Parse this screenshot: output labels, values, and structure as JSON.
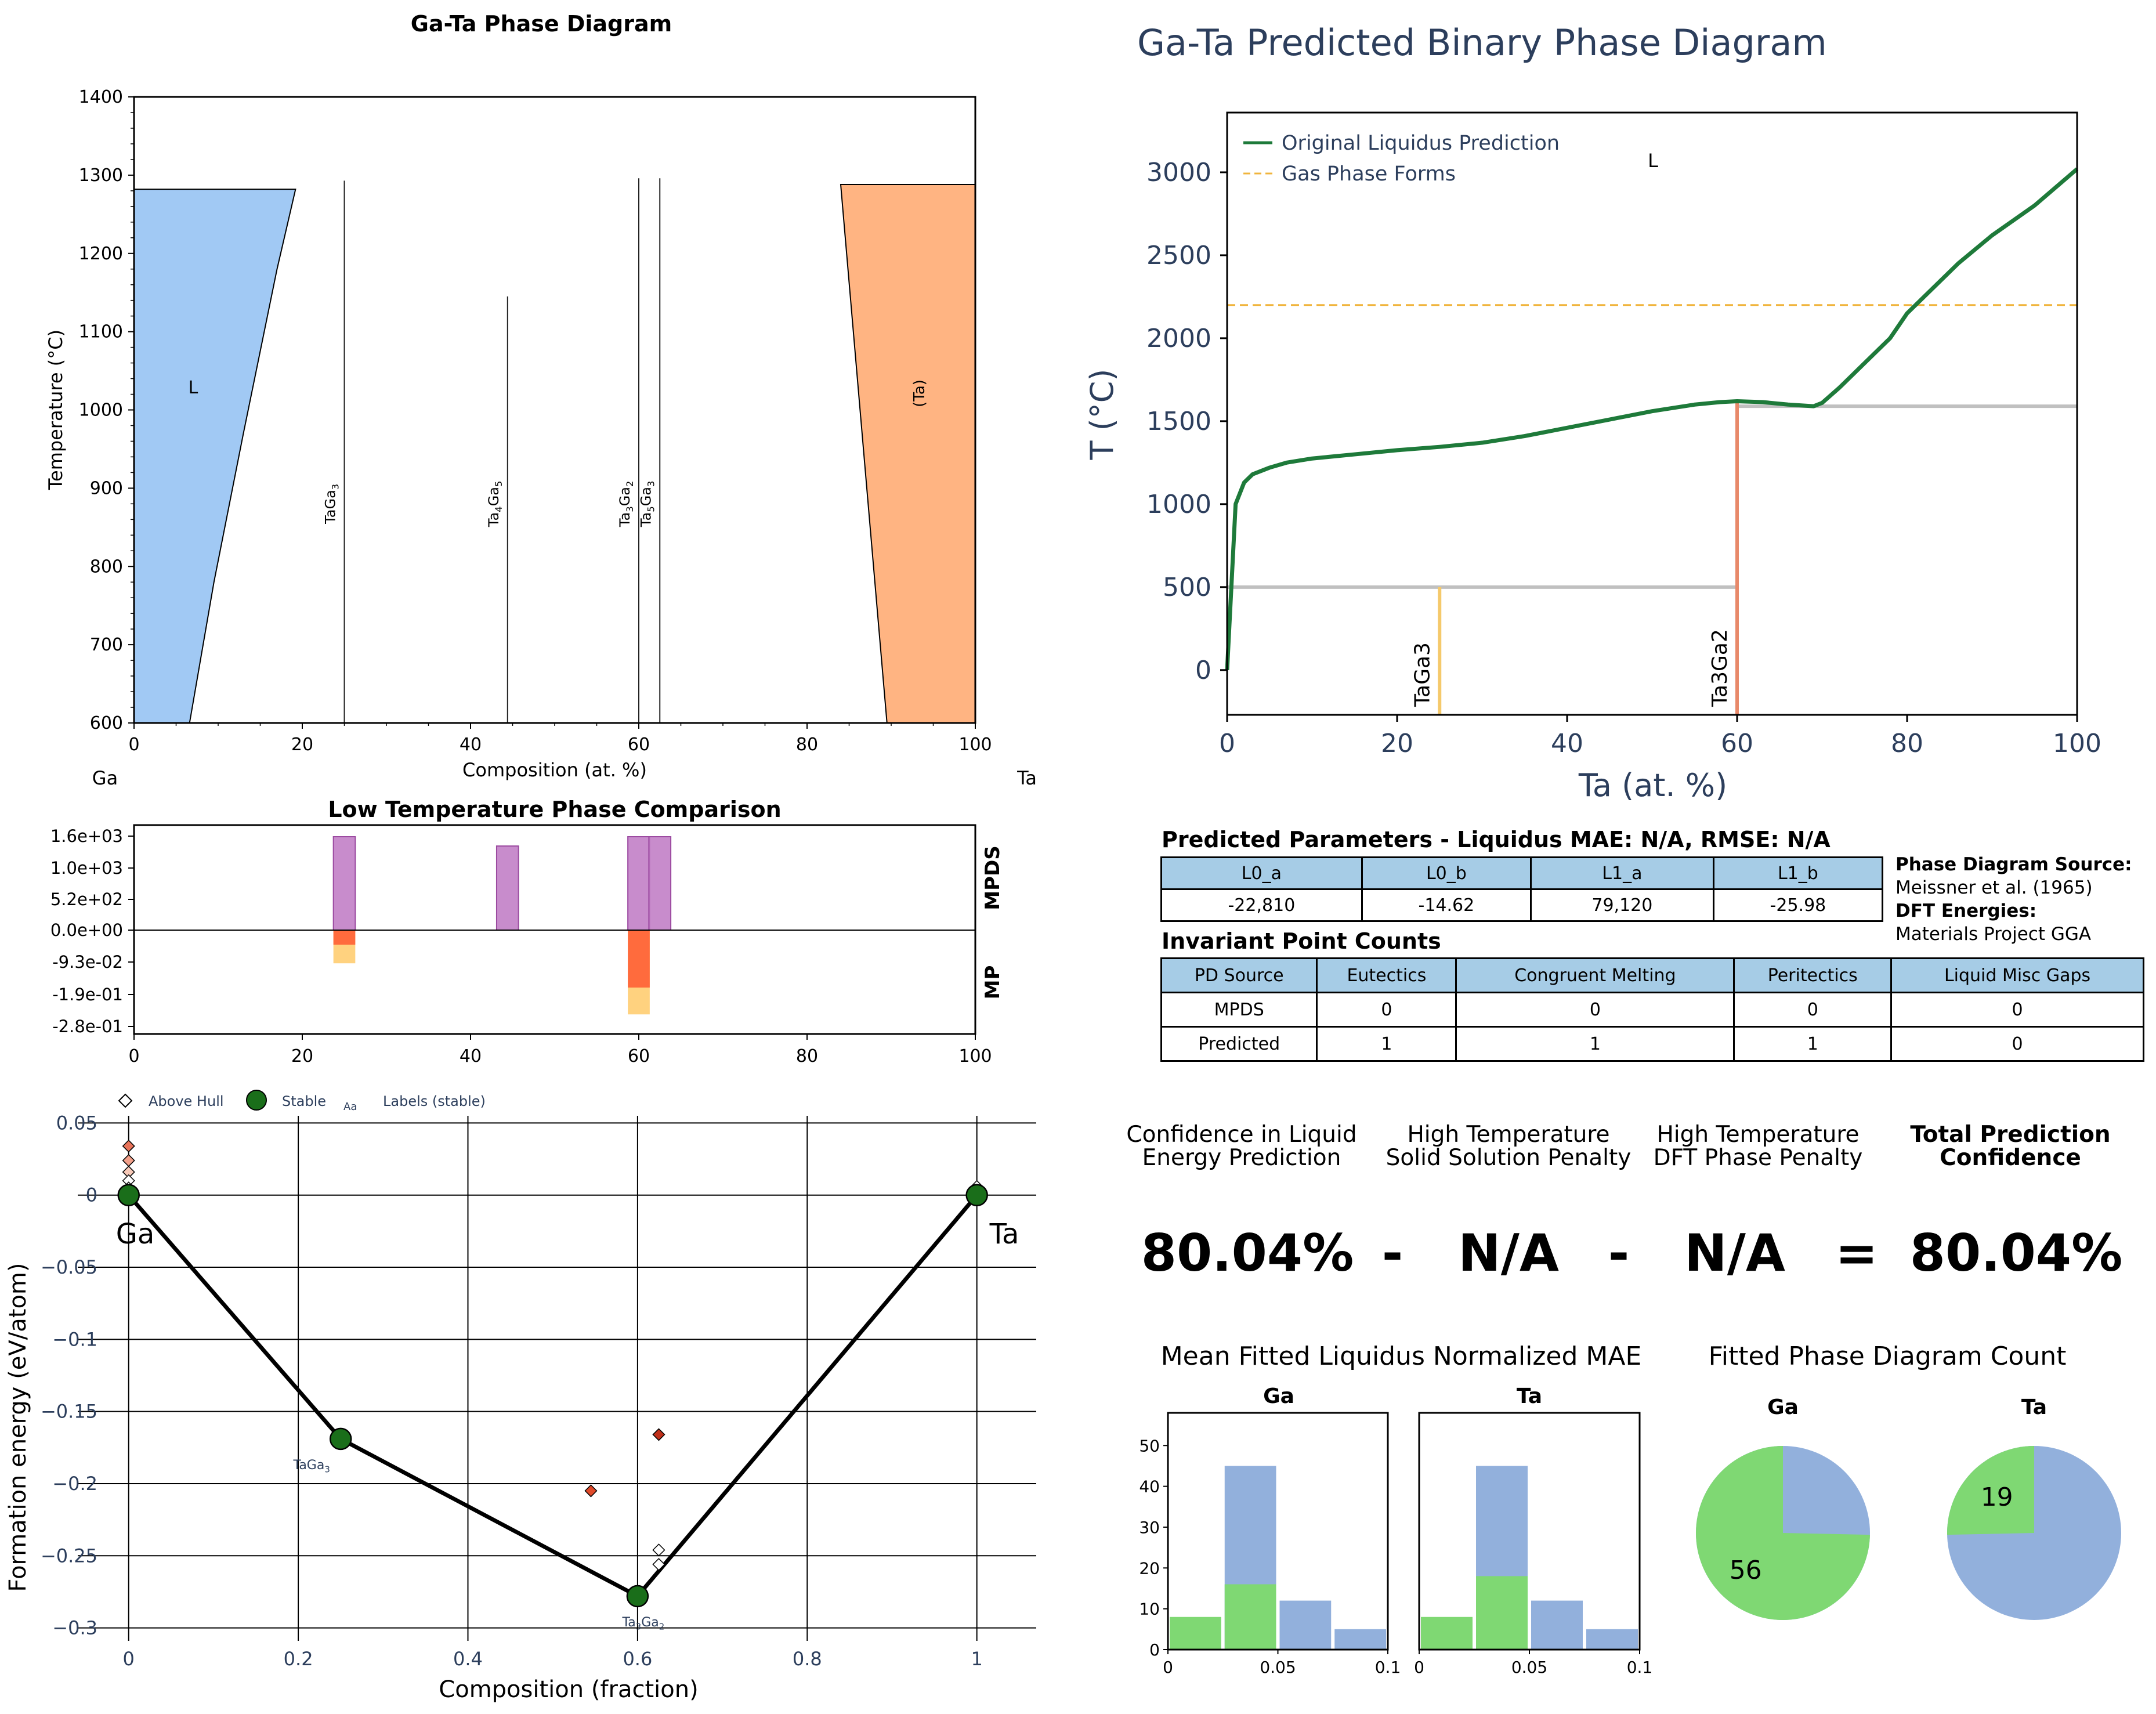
{
  "figures": {
    "pd_left": {
      "title": "Ga-Ta Phase Diagram",
      "xlabel": "Composition (at. %)",
      "ylabel": "Temperature (°C)",
      "left_element": "Ga",
      "right_element": "Ta",
      "region_labels": [
        "L",
        "(Ta)"
      ]
    },
    "compare": {
      "title": "Low Temperature Phase Comparison",
      "top_label": "MPDS",
      "bottom_label": "MP"
    },
    "hull": {
      "xlabel": "Composition (fraction)",
      "ylabel": "Formation energy (eV/atom)",
      "legend": [
        "Above Hull",
        "Stable",
        "Aa",
        "Labels (stable)"
      ],
      "end_labels": [
        "Ga",
        "Ta"
      ]
    },
    "pd_right": {
      "title": "Ga-Ta Predicted Binary Phase Diagram",
      "xlabel": "Ta (at. %)",
      "ylabel": "T (°C)",
      "legend": [
        "Original Liquidus Prediction",
        "Gas Phase Forms"
      ],
      "region_label": "L"
    }
  },
  "params": {
    "title": "Predicted Parameters - Liquidus MAE: N/A, RMSE: N/A",
    "headers": [
      "L0_a",
      "L0_b",
      "L1_a",
      "L1_b"
    ],
    "values": [
      "-22,810",
      "-14.62",
      "79,120",
      "-25.98"
    ]
  },
  "source": {
    "pd_label": "Phase Diagram Source:",
    "pd_value": "Meissner et al. (1965)",
    "dft_label": "DFT Energies:",
    "dft_value": "Materials Project GGA"
  },
  "invariants": {
    "title": "Invariant Point Counts",
    "headers": [
      "PD Source",
      "Eutectics",
      "Congruent Melting",
      "Peritectics",
      "Liquid Misc Gaps"
    ],
    "rows": [
      [
        "MPDS",
        "0",
        "0",
        "0",
        "0"
      ],
      [
        "Predicted",
        "1",
        "1",
        "1",
        "0"
      ]
    ]
  },
  "confidence": {
    "h1a": "Confidence in Liquid",
    "h1b": "Energy Prediction",
    "h2a": "High Temperature",
    "h2b": "Solid Solution Penalty",
    "h3a": "High Temperature",
    "h3b": "DFT Phase Penalty",
    "h4a": "Total Prediction",
    "h4b": "Confidence",
    "v1": "80.04%",
    "op1": "-",
    "v2": "N/A",
    "op2": "-",
    "v3": "N/A",
    "op3": "=",
    "v4": "80.04%"
  },
  "mae": {
    "title": "Mean Fitted Liquidus Normalized MAE",
    "sub": [
      "Ga",
      "Ta"
    ]
  },
  "count": {
    "title": "Fitted Phase Diagram Count",
    "sub": [
      "Ga",
      "Ta"
    ]
  },
  "colors": {
    "liquid_fill": "#a1c9f4",
    "ta_fill": "#ffb482",
    "purple": "#c27fc7",
    "red": "#ff6b3d",
    "orange": "#ffd27f",
    "green_line": "#1e7a3a",
    "gas_line": "#f0b43c",
    "blue_bar": "#92b0dc",
    "green_bar": "#7fd873",
    "stable_dot": "#1a6e1a",
    "text_navy": "#2c3e5c"
  },
  "chart_data": [
    {
      "type": "area",
      "name": "pd_left",
      "xlim": [
        0,
        100
      ],
      "ylim": [
        600,
        1400
      ],
      "xticks": [
        0,
        20,
        40,
        60,
        80,
        100
      ],
      "yticks": [
        600,
        700,
        800,
        900,
        1000,
        1100,
        1200,
        1300,
        1400
      ],
      "liquid_region": [
        [
          0,
          600
        ],
        [
          0,
          1282
        ],
        [
          19.2,
          1282
        ],
        [
          17,
          1180
        ],
        [
          13,
          970
        ],
        [
          9.5,
          780
        ],
        [
          6.6,
          600
        ]
      ],
      "ta_region": [
        [
          84,
          1288
        ],
        [
          100,
          1288
        ],
        [
          100,
          600
        ],
        [
          89.5,
          600
        ]
      ],
      "compounds": [
        {
          "label": "TaGa3",
          "main": "TaGa",
          "sub": "3",
          "x": 25,
          "ytop": 1293
        },
        {
          "label": "Ta4Ga5",
          "main": "Ta",
          "sub1": "4",
          "main2": "Ga",
          "sub": "5",
          "x": 44.4,
          "ytop": 1145
        },
        {
          "label": "Ta3Ga2",
          "main": "Ta",
          "sub1": "3",
          "main2": "Ga",
          "sub": "2",
          "x": 60,
          "ytop": 1296
        },
        {
          "label": "Ta5Ga3",
          "main": "Ta",
          "sub1": "5",
          "main2": "Ga",
          "sub": "3",
          "x": 62.5,
          "ytop": 1296
        }
      ],
      "grid": false
    },
    {
      "type": "bar",
      "name": "compare",
      "xlim": [
        0,
        100
      ],
      "xticks": [
        0,
        20,
        40,
        60,
        80,
        100
      ],
      "ytick_labels": [
        "1.6e+03",
        "1.0e+03",
        "5.2e+02",
        "0.0e+00",
        "-9.3e-02",
        "-1.9e-01",
        "-2.8e-01"
      ],
      "mpds_bars": [
        {
          "x0": 23.7,
          "x1": 26.3,
          "level": 1.0
        },
        {
          "x0": 43.1,
          "x1": 45.7,
          "level": 0.9
        },
        {
          "x0": 58.7,
          "x1": 61.3,
          "level": 1.0
        },
        {
          "x0": 61.2,
          "x1": 63.8,
          "level": 1.0
        }
      ],
      "mp_bars": [
        {
          "x0": 23.7,
          "x1": 26.3,
          "red": -0.0425,
          "orange": -0.0965
        },
        {
          "x0": 58.7,
          "x1": 61.3,
          "red": -0.167,
          "orange": -0.245
        }
      ],
      "grid": false
    },
    {
      "type": "scatter",
      "name": "hull",
      "xlim": [
        -0.06,
        1.07
      ],
      "ylim": [
        -0.305,
        0.055
      ],
      "xticks": [
        0,
        0.2,
        0.4,
        0.6,
        0.8,
        1
      ],
      "xtick_labels": [
        "0",
        "0.2",
        "0.4",
        "0.6",
        "0.8",
        "1"
      ],
      "yticks": [
        0.05,
        0,
        -0.05,
        -0.1,
        -0.15,
        -0.2,
        -0.25,
        -0.3
      ],
      "ytick_labels": [
        "0.05",
        "0",
        "−0.05",
        "−0.1",
        "−0.15",
        "−0.2",
        "−0.25",
        "−0.3"
      ],
      "hull_line": [
        [
          0,
          0
        ],
        [
          0.25,
          -0.169
        ],
        [
          0.6,
          -0.278
        ],
        [
          1,
          0
        ]
      ],
      "stable": [
        {
          "x": 0,
          "y": 0
        },
        {
          "x": 0.25,
          "y": -0.169,
          "label": "TaGa3",
          "main": "TaGa",
          "sub": "3"
        },
        {
          "x": 0.6,
          "y": -0.278,
          "label": "Ta3Ga2",
          "main": "Ta",
          "sub1": "3",
          "main2": "Ga",
          "sub": "2"
        },
        {
          "x": 1,
          "y": 0
        }
      ],
      "above_hull": [
        {
          "x": 0,
          "y": 0.034,
          "c": "#e8735a"
        },
        {
          "x": 0,
          "y": 0.024,
          "c": "#f2a08a"
        },
        {
          "x": 0,
          "y": 0.016,
          "c": "#f7c9b8"
        },
        {
          "x": 0,
          "y": 0.01,
          "c": "#ffffff"
        },
        {
          "x": 0,
          "y": 0.005,
          "c": "#ffffff"
        },
        {
          "x": 1,
          "y": 0.006,
          "c": "#ffffff"
        },
        {
          "x": 0.545,
          "y": -0.205,
          "c": "#e04a2a"
        },
        {
          "x": 0.625,
          "y": -0.166,
          "c": "#c0301a"
        },
        {
          "x": 0.625,
          "y": -0.246,
          "c": "#ffffff"
        },
        {
          "x": 0.625,
          "y": -0.256,
          "c": "#ffffff"
        }
      ],
      "grid": true
    },
    {
      "type": "line",
      "name": "pd_right",
      "xlim": [
        0,
        100
      ],
      "ylim": [
        -270,
        3360
      ],
      "xticks": [
        0,
        20,
        40,
        60,
        80,
        100
      ],
      "yticks": [
        0,
        500,
        1000,
        1500,
        2000,
        2500,
        3000
      ],
      "series": [
        {
          "name": "Original Liquidus Prediction",
          "x": [
            0,
            1,
            2,
            3,
            5,
            7,
            10,
            15,
            20,
            25,
            30,
            35,
            40,
            45,
            50,
            55,
            58,
            60,
            63,
            66,
            69,
            70,
            72,
            75,
            78,
            80,
            83,
            86,
            90,
            95,
            100
          ],
          "y": [
            0,
            1000,
            1130,
            1180,
            1220,
            1250,
            1275,
            1300,
            1325,
            1345,
            1370,
            1410,
            1460,
            1510,
            1560,
            1600,
            1615,
            1620,
            1615,
            1600,
            1590,
            1610,
            1700,
            1850,
            2000,
            2150,
            2300,
            2450,
            2620,
            2800,
            3020
          ]
        },
        {
          "name": "Gas Phase Forms",
          "x": [
            0,
            100
          ],
          "y": [
            2200,
            2200
          ]
        }
      ],
      "invariant_lines": [
        {
          "x0": 0,
          "x1": 60,
          "y": 500
        },
        {
          "x0": 60,
          "x1": 100,
          "y": 1590
        }
      ],
      "compounds": [
        {
          "label": "TaGa3",
          "x": 25,
          "ytop": 500
        },
        {
          "label": "Ta3Ga2",
          "x": 60,
          "ytop": 1620
        }
      ],
      "grid": false
    },
    {
      "type": "bar",
      "name": "mae_ga",
      "title": "Ga",
      "xlim": [
        0,
        0.1
      ],
      "ylim": [
        0,
        58
      ],
      "xticks": [
        0,
        0.05,
        0.1
      ],
      "xtick_labels": [
        "0",
        "0.05",
        "0.1"
      ],
      "yticks": [
        0,
        10,
        20,
        30,
        40,
        50
      ],
      "bins": [
        [
          0,
          0.025
        ],
        [
          0.025,
          0.05
        ],
        [
          0.05,
          0.075
        ],
        [
          0.075,
          0.1
        ]
      ],
      "series": [
        {
          "color": "blue",
          "values": [
            0,
            45,
            12,
            5
          ]
        },
        {
          "color": "green",
          "values": [
            8,
            16,
            0,
            0
          ]
        }
      ]
    },
    {
      "type": "bar",
      "name": "mae_ta",
      "title": "Ta",
      "xlim": [
        0,
        0.1
      ],
      "ylim": [
        0,
        58
      ],
      "xticks": [
        0,
        0.05,
        0.1
      ],
      "xtick_labels": [
        "0",
        "0.05",
        "0.1"
      ],
      "bins": [
        [
          0,
          0.025
        ],
        [
          0.025,
          0.05
        ],
        [
          0.05,
          0.075
        ],
        [
          0.075,
          0.1
        ]
      ],
      "series": [
        {
          "color": "blue",
          "values": [
            0,
            45,
            12,
            5
          ]
        },
        {
          "color": "green",
          "values": [
            8,
            18,
            0,
            0
          ]
        }
      ]
    },
    {
      "type": "pie",
      "name": "count_ga",
      "title": "Ga",
      "slices": [
        {
          "value": 56,
          "color": "green",
          "label": "56"
        },
        {
          "value": 19,
          "color": "blue",
          "label": ""
        }
      ]
    },
    {
      "type": "pie",
      "name": "count_ta",
      "title": "Ta",
      "slices": [
        {
          "value": 19,
          "color": "green",
          "label": "19"
        },
        {
          "value": 56,
          "color": "blue",
          "label": ""
        }
      ]
    }
  ]
}
